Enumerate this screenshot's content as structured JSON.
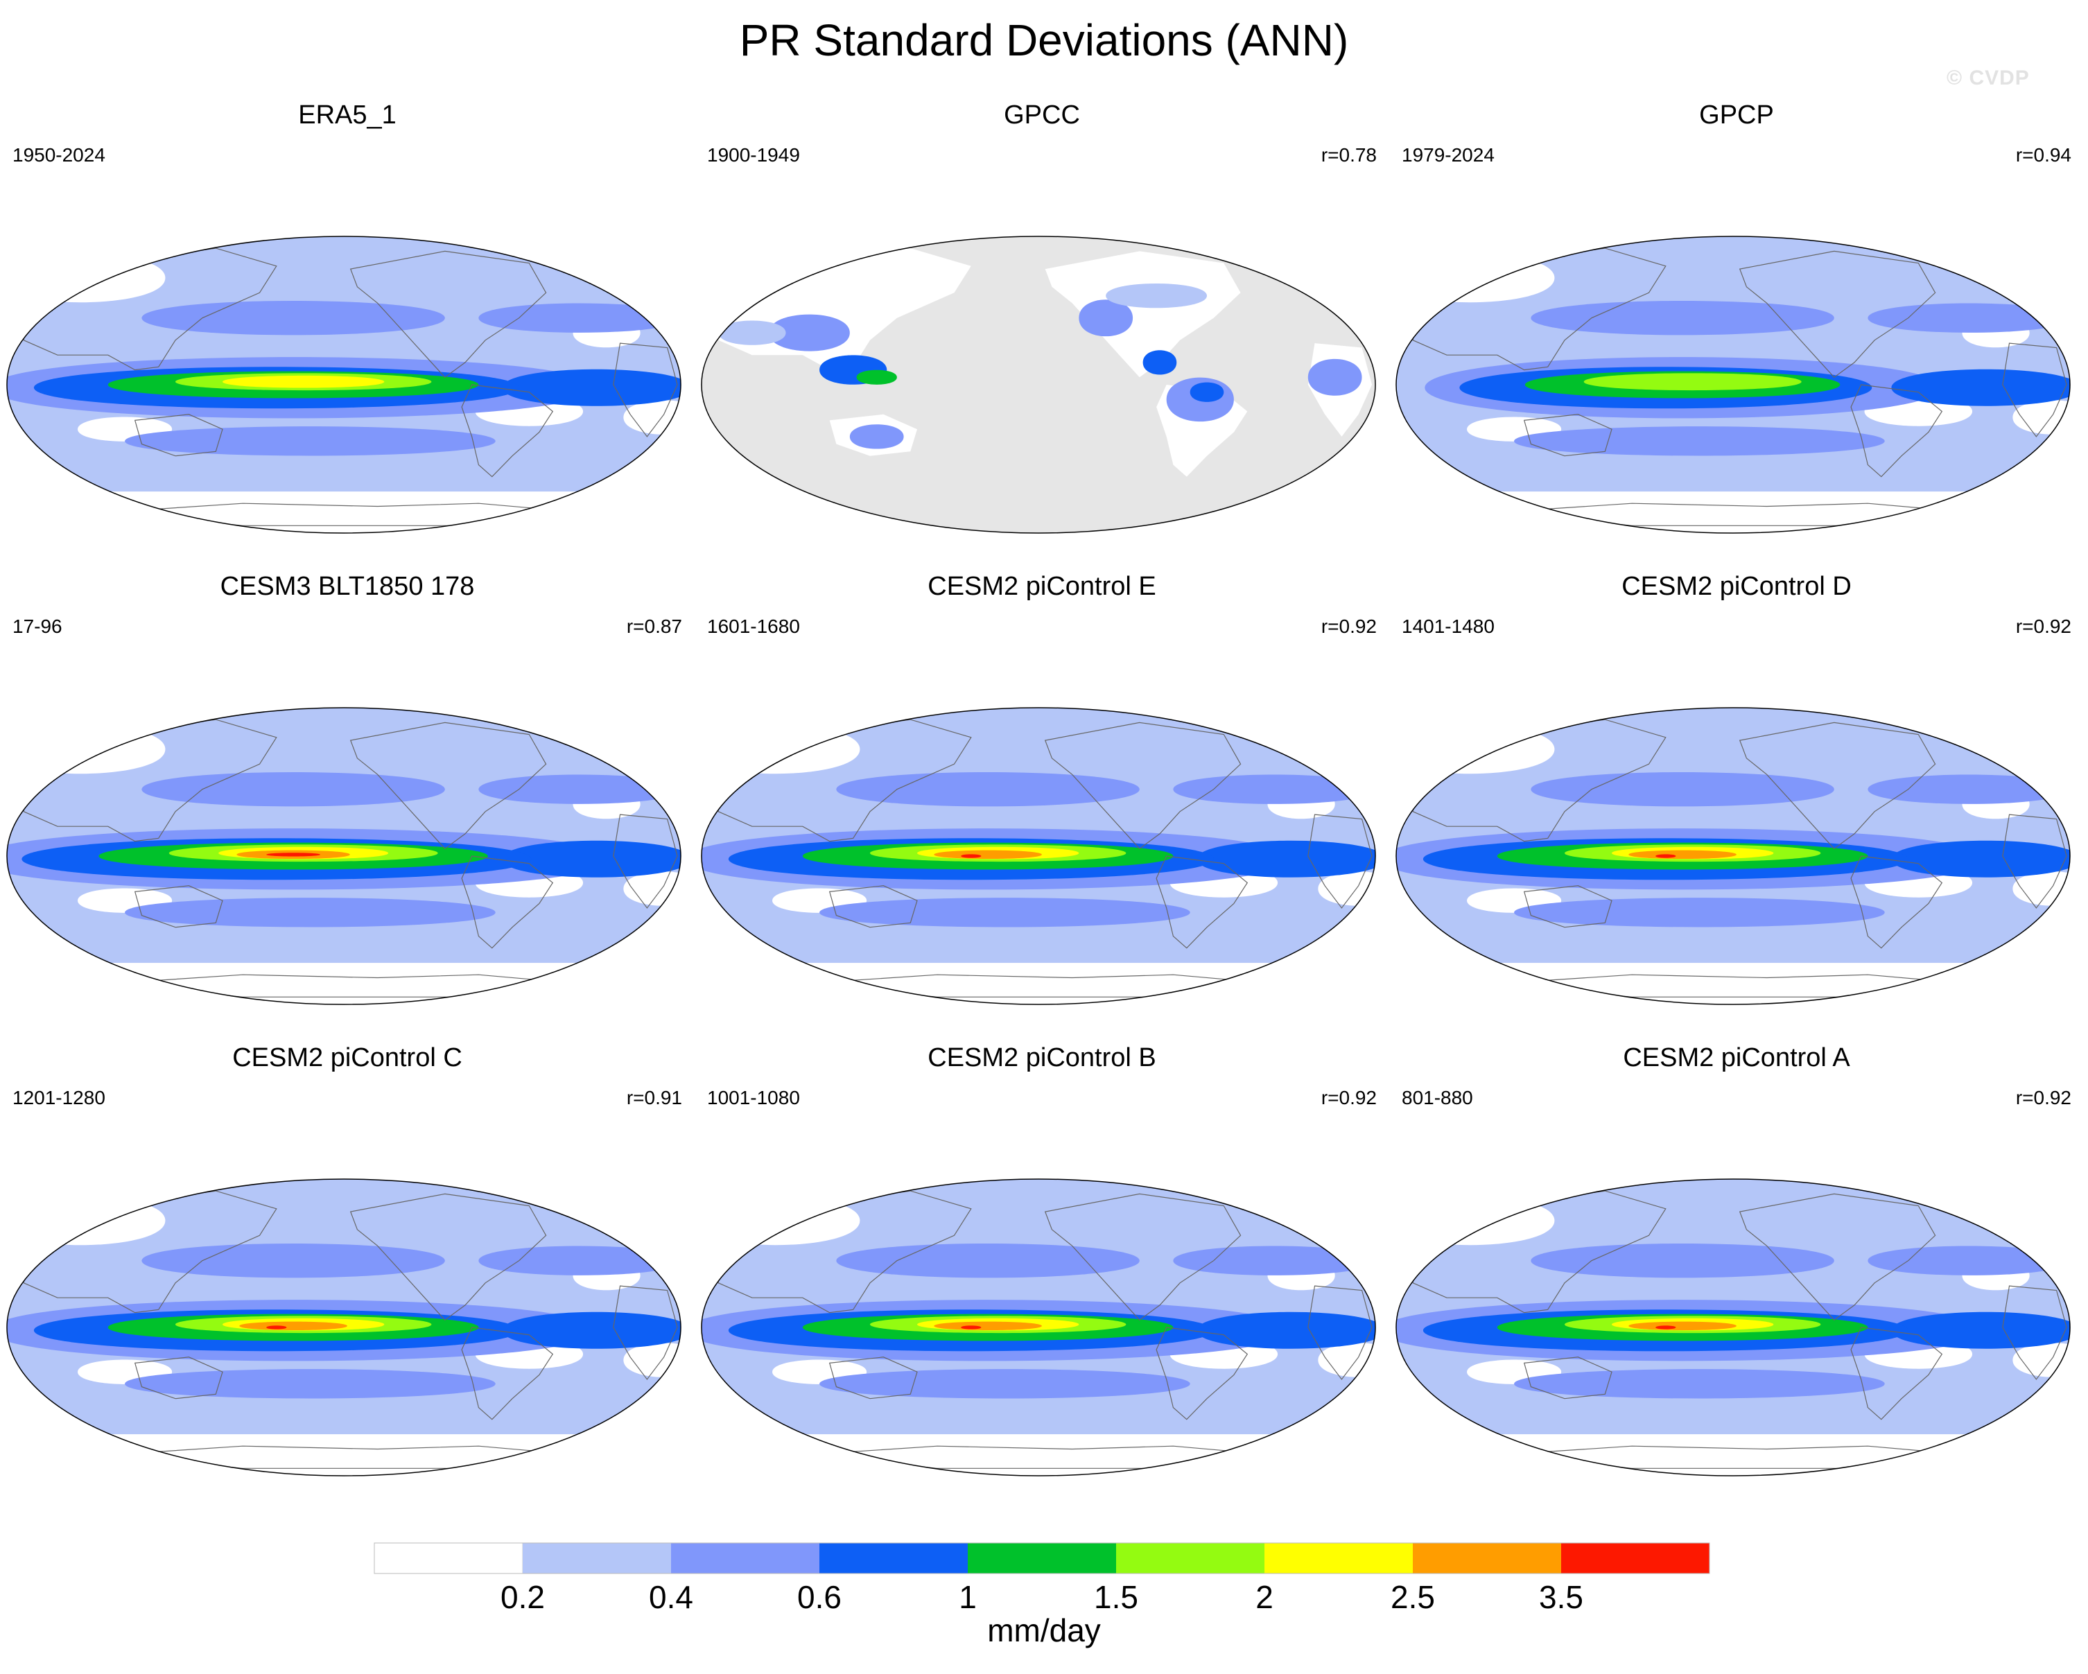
{
  "title": "PR Standard Deviations (ANN)",
  "watermark": "© CVDP",
  "panels": [
    {
      "name": "ERA5_1",
      "period": "1950-2024",
      "corr": "",
      "style": "obs"
    },
    {
      "name": "GPCC",
      "period": "1900-1949",
      "corr": "r=0.78",
      "style": "land"
    },
    {
      "name": "GPCP",
      "period": "1979-2024",
      "corr": "r=0.94",
      "style": "gpcp"
    },
    {
      "name": "CESM3 BLT1850 178",
      "period": "17-96",
      "corr": "r=0.87",
      "style": "model-strong"
    },
    {
      "name": "CESM2 piControl E",
      "period": "1601-1680",
      "corr": "r=0.92",
      "style": "model"
    },
    {
      "name": "CESM2 piControl D",
      "period": "1401-1480",
      "corr": "r=0.92",
      "style": "model"
    },
    {
      "name": "CESM2 piControl C",
      "period": "1201-1280",
      "corr": "r=0.91",
      "style": "model"
    },
    {
      "name": "CESM2 piControl B",
      "period": "1001-1080",
      "corr": "r=0.92",
      "style": "model"
    },
    {
      "name": "CESM2 piControl A",
      "period": "801-880",
      "corr": "r=0.92",
      "style": "model"
    }
  ],
  "colorbar": {
    "units": "mm/day",
    "levels": [
      "0.2",
      "0.4",
      "0.6",
      "1",
      "1.5",
      "2",
      "2.5",
      "3.5"
    ],
    "colors": [
      "#ffffff",
      "#b4c6f8",
      "#8097fb",
      "#0d5ff5",
      "#00c12b",
      "#94fb11",
      "#ffff00",
      "#ff9d00",
      "#fd1800"
    ]
  },
  "chart_data": {
    "type": "heatmap",
    "title": "PR Standard Deviations (ANN)",
    "variable": "precipitation standard deviation, annual",
    "projection": "Robinson, Pacific-centered",
    "units": "mm/day",
    "contour_levels": [
      0.2,
      0.4,
      0.6,
      1,
      1.5,
      2,
      2.5,
      3.5
    ],
    "panels": [
      {
        "name": "ERA5_1",
        "years": "1950-2024",
        "pattern_correlation": null
      },
      {
        "name": "GPCC",
        "years": "1900-1949",
        "pattern_correlation": 0.78
      },
      {
        "name": "GPCP",
        "years": "1979-2024",
        "pattern_correlation": 0.94
      },
      {
        "name": "CESM3 BLT1850 178",
        "years": "17-96",
        "pattern_correlation": 0.87
      },
      {
        "name": "CESM2 piControl E",
        "years": "1601-1680",
        "pattern_correlation": 0.92
      },
      {
        "name": "CESM2 piControl D",
        "years": "1401-1480",
        "pattern_correlation": 0.92
      },
      {
        "name": "CESM2 piControl C",
        "years": "1201-1280",
        "pattern_correlation": 0.91
      },
      {
        "name": "CESM2 piControl B",
        "years": "1001-1080",
        "pattern_correlation": 0.92
      },
      {
        "name": "CESM2 piControl A",
        "years": "801-880",
        "pattern_correlation": 0.92
      }
    ]
  }
}
